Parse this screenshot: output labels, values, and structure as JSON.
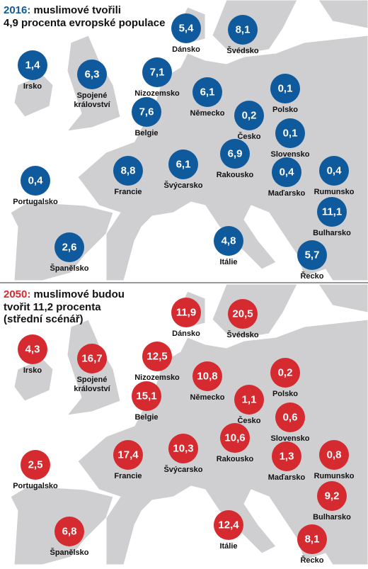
{
  "maps": [
    {
      "year": "2016:",
      "color": "#0f5a9c",
      "title_lines": [
        "muslimové tvořili",
        "4,9 procenta evropské populace"
      ],
      "countries": [
        {
          "label": [
            "Dánsko"
          ],
          "value": "5,4"
        },
        {
          "label": [
            "Švédsko"
          ],
          "value": "8,1"
        },
        {
          "label": [
            "Irsko"
          ],
          "value": "1,4"
        },
        {
          "label": [
            "Spojené",
            "království"
          ],
          "value": "6,3"
        },
        {
          "label": [
            "Nizozemsko"
          ],
          "value": "7,1"
        },
        {
          "label": [
            "Německo"
          ],
          "value": "6,1"
        },
        {
          "label": [
            "Polsko"
          ],
          "value": "0,1"
        },
        {
          "label": [
            "Belgie"
          ],
          "value": "7,6"
        },
        {
          "label": [
            "Česko"
          ],
          "value": "0,2"
        },
        {
          "label": [
            "Slovensko"
          ],
          "value": "0,1"
        },
        {
          "label": [
            "Rakousko"
          ],
          "value": "6,9"
        },
        {
          "label": [
            "Francie"
          ],
          "value": "8,8"
        },
        {
          "label": [
            "Švýcarsko"
          ],
          "value": "6,1"
        },
        {
          "label": [
            "Maďarsko"
          ],
          "value": "0,4"
        },
        {
          "label": [
            "Rumunsko"
          ],
          "value": "0,4"
        },
        {
          "label": [
            "Portugalsko"
          ],
          "value": "0,4"
        },
        {
          "label": [
            "Bulharsko"
          ],
          "value": "11,1"
        },
        {
          "label": [
            "Španělsko"
          ],
          "value": "2,6"
        },
        {
          "label": [
            "Itálie"
          ],
          "value": "4,8"
        },
        {
          "label": [
            "Řecko"
          ],
          "value": "5,7"
        }
      ]
    },
    {
      "year": "2050:",
      "color": "#d52a30",
      "title_lines": [
        "muslimové budou",
        "tvořit 11,2 procenta",
        "(střední scénář)"
      ],
      "countries": [
        {
          "label": [
            "Dánsko"
          ],
          "value": "11,9"
        },
        {
          "label": [
            "Švédsko"
          ],
          "value": "20,5"
        },
        {
          "label": [
            "Irsko"
          ],
          "value": "4,3"
        },
        {
          "label": [
            "Spojené",
            "království"
          ],
          "value": "16,7"
        },
        {
          "label": [
            "Nizozemsko"
          ],
          "value": "12,5"
        },
        {
          "label": [
            "Německo"
          ],
          "value": "10,8"
        },
        {
          "label": [
            "Polsko"
          ],
          "value": "0,2"
        },
        {
          "label": [
            "Belgie"
          ],
          "value": "15,1"
        },
        {
          "label": [
            "Česko"
          ],
          "value": "1,1"
        },
        {
          "label": [
            "Slovensko"
          ],
          "value": "0,6"
        },
        {
          "label": [
            "Rakousko"
          ],
          "value": "10,6"
        },
        {
          "label": [
            "Francie"
          ],
          "value": "17,4"
        },
        {
          "label": [
            "Švýcarsko"
          ],
          "value": "10,3"
        },
        {
          "label": [
            "Maďarsko"
          ],
          "value": "1,3"
        },
        {
          "label": [
            "Rumunsko"
          ],
          "value": "0,8"
        },
        {
          "label": [
            "Portugalsko"
          ],
          "value": "2,5"
        },
        {
          "label": [
            "Bulharsko"
          ],
          "value": "9,2"
        },
        {
          "label": [
            "Španělsko"
          ],
          "value": "6,8"
        },
        {
          "label": [
            "Itálie"
          ],
          "value": "12,4"
        },
        {
          "label": [
            "Řecko"
          ],
          "value": "8,1"
        }
      ]
    }
  ]
}
